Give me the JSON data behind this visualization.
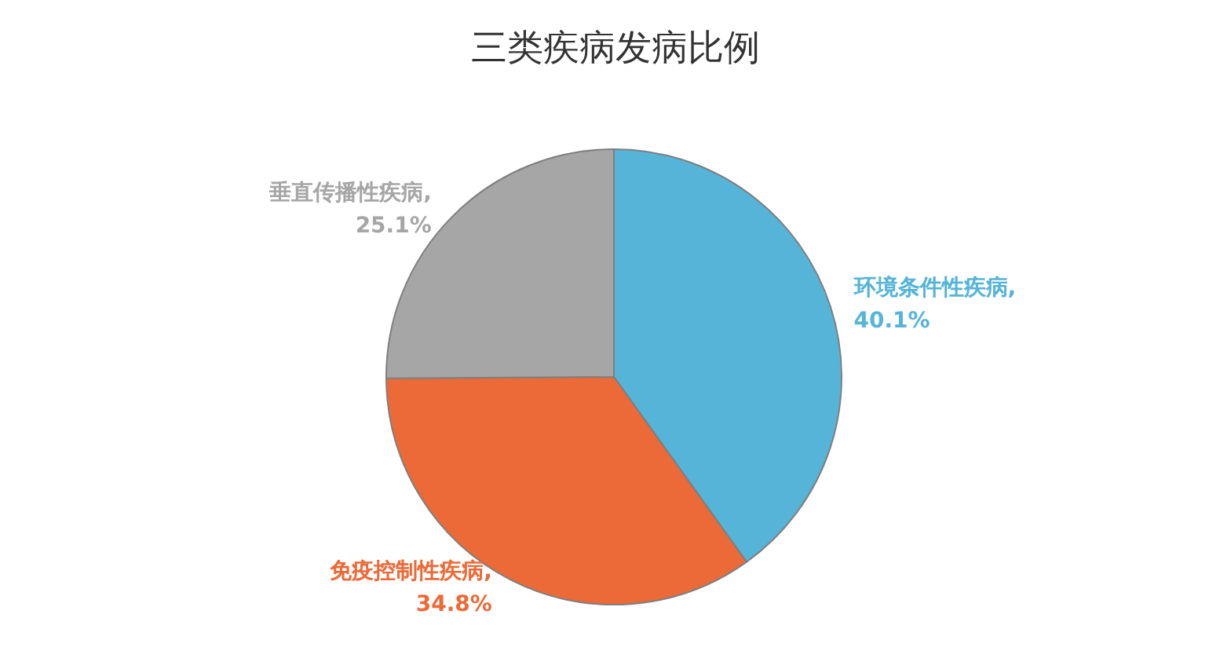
{
  "chart_data": {
    "type": "pie",
    "title": "三类疾病发病比例",
    "categories": [
      "环境条件性疾病",
      "免疫控制性疾病",
      "垂直传播性疾病"
    ],
    "values": [
      40.1,
      34.8,
      25.1
    ],
    "value_labels": [
      ",\n40.1%",
      ",\n34.8%",
      ",\n25.1%"
    ],
    "colors": [
      "#55b4d8",
      "#ec6a37",
      "#a6a6a6"
    ]
  }
}
